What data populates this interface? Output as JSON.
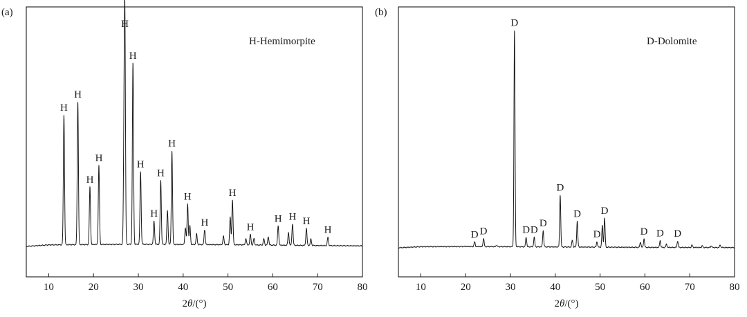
{
  "chart_data": [
    {
      "type": "line",
      "panel_label": "(a)",
      "legend_text": "H-Hemimorpite",
      "xlabel_prefix": "2",
      "xlabel_theta": "θ",
      "xlabel_unit": "/(°)",
      "ylabel": "",
      "xlim": [
        5,
        80
      ],
      "xticks": [
        10,
        20,
        30,
        40,
        50,
        60,
        70,
        80
      ],
      "y_axis_ticks": false,
      "grid": false,
      "series": [
        {
          "peak_marker": "H",
          "background": [
            [
              5,
              0.0
            ],
            [
              10,
              0.7
            ],
            [
              20,
              0.9
            ],
            [
              30,
              1.0
            ],
            [
              40,
              0.9
            ],
            [
              50,
              0.8
            ],
            [
              60,
              0.6
            ],
            [
              70,
              0.4
            ],
            [
              80,
              0.25
            ]
          ],
          "peaks": [
            {
              "x": 13.4,
              "y": 61,
              "label": "H"
            },
            {
              "x": 16.5,
              "y": 67,
              "label": "H"
            },
            {
              "x": 19.2,
              "y": 27,
              "label": "H"
            },
            {
              "x": 21.2,
              "y": 37,
              "label": "H"
            },
            {
              "x": 27.0,
              "y": 100,
              "label": "H"
            },
            {
              "x": 28.8,
              "y": 85,
              "label": "H"
            },
            {
              "x": 30.5,
              "y": 34,
              "label": "H"
            },
            {
              "x": 33.5,
              "y": 11,
              "label": "H"
            },
            {
              "x": 35.0,
              "y": 30,
              "label": "H"
            },
            {
              "x": 37.5,
              "y": 44,
              "label": "H"
            },
            {
              "x": 41.0,
              "y": 19,
              "label": "H"
            },
            {
              "x": 44.8,
              "y": 7,
              "label": "H"
            },
            {
              "x": 51.0,
              "y": 21,
              "label": "H"
            },
            {
              "x": 55.0,
              "y": 5,
              "label": "H"
            },
            {
              "x": 61.2,
              "y": 9,
              "label": "H"
            },
            {
              "x": 64.4,
              "y": 10,
              "label": "H"
            },
            {
              "x": 67.5,
              "y": 8,
              "label": "H"
            },
            {
              "x": 72.3,
              "y": 4,
              "label": "H"
            },
            {
              "x": 26.8,
              "y": 45
            },
            {
              "x": 36.5,
              "y": 16
            },
            {
              "x": 40.5,
              "y": 8
            },
            {
              "x": 41.5,
              "y": 9
            },
            {
              "x": 43.0,
              "y": 5
            },
            {
              "x": 49.0,
              "y": 4
            },
            {
              "x": 50.5,
              "y": 13
            },
            {
              "x": 54.0,
              "y": 3
            },
            {
              "x": 55.8,
              "y": 3
            },
            {
              "x": 58.0,
              "y": 3
            },
            {
              "x": 59.0,
              "y": 4
            },
            {
              "x": 63.5,
              "y": 6
            },
            {
              "x": 68.5,
              "y": 3
            }
          ]
        }
      ]
    },
    {
      "type": "line",
      "panel_label": "(b)",
      "legend_text": "D-Dolomite",
      "xlabel_prefix": "2",
      "xlabel_theta": "θ",
      "xlabel_unit": "/(°)",
      "ylabel": "",
      "xlim": [
        5,
        80
      ],
      "xticks": [
        10,
        20,
        30,
        40,
        50,
        60,
        70,
        80
      ],
      "y_axis_ticks": false,
      "grid": false,
      "series": [
        {
          "peak_marker": "D",
          "background": [
            [
              5,
              0.0
            ],
            [
              10,
              0.5
            ],
            [
              20,
              0.6
            ],
            [
              30,
              0.5
            ],
            [
              40,
              0.4
            ],
            [
              50,
              0.3
            ],
            [
              60,
              0.2
            ],
            [
              80,
              0.1
            ]
          ],
          "peaks": [
            {
              "x": 22.0,
              "y": 2.2,
              "label": "D"
            },
            {
              "x": 24.0,
              "y": 3.8,
              "label": "D"
            },
            {
              "x": 30.9,
              "y": 100,
              "label": "D"
            },
            {
              "x": 33.5,
              "y": 4.5,
              "label": "D"
            },
            {
              "x": 35.3,
              "y": 4.5,
              "label": "D"
            },
            {
              "x": 37.3,
              "y": 7.5,
              "label": "D"
            },
            {
              "x": 41.1,
              "y": 24,
              "label": "D"
            },
            {
              "x": 44.9,
              "y": 12,
              "label": "D"
            },
            {
              "x": 49.3,
              "y": 2.5,
              "label": "D"
            },
            {
              "x": 51.0,
              "y": 13.5,
              "label": "D"
            },
            {
              "x": 59.8,
              "y": 4,
              "label": "D"
            },
            {
              "x": 63.4,
              "y": 3.2,
              "label": "D"
            },
            {
              "x": 67.3,
              "y": 3.0,
              "label": "D"
            },
            {
              "x": 50.5,
              "y": 10
            },
            {
              "x": 26.9,
              "y": 0.7
            },
            {
              "x": 43.8,
              "y": 3.2
            },
            {
              "x": 59.0,
              "y": 2.5
            },
            {
              "x": 64.8,
              "y": 1.5
            },
            {
              "x": 70.5,
              "y": 1.2
            },
            {
              "x": 72.8,
              "y": 0.8
            },
            {
              "x": 74.8,
              "y": 0.8
            },
            {
              "x": 76.8,
              "y": 1.2
            }
          ]
        }
      ]
    }
  ]
}
